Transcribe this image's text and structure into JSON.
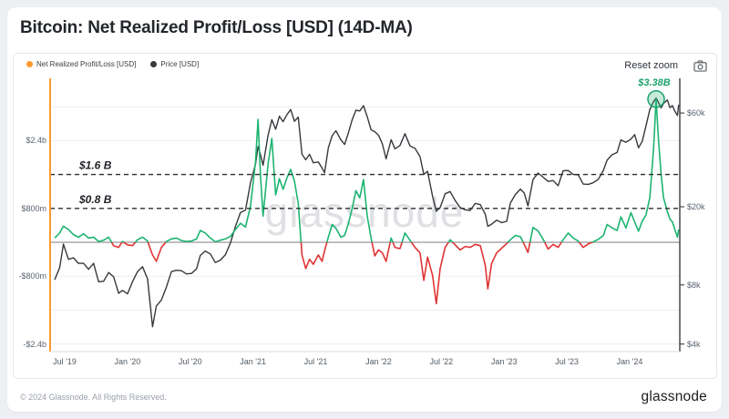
{
  "page": {
    "title": "Bitcoin: Net Realized Profit/Loss [USD] (14D-MA)"
  },
  "toolbar": {
    "reset_zoom": "Reset zoom",
    "camera_icon": "camera-icon"
  },
  "legend": {
    "items": [
      {
        "label": "Net Realized Profit/Loss [USD]",
        "color": "#ff9a2e"
      },
      {
        "label": "Price [USD]",
        "color": "#35393e"
      }
    ]
  },
  "watermark": "glassnode",
  "footer": {
    "copyright": "© 2024 Glassnode. All Rights Reserved.",
    "brand": "glassnode"
  },
  "chart_data": {
    "type": "line",
    "title": "Bitcoin: Net Realized Profit/Loss [USD] (14D-MA)",
    "series": [
      {
        "name": "Net Realized Profit/Loss [USD]",
        "axis": "left",
        "unit": "billions USD",
        "style": "green above zero, red below zero"
      },
      {
        "name": "Price [USD]",
        "axis": "right",
        "unit": "USD",
        "style": "dark line, log scale"
      }
    ],
    "x_unit": "decimal year",
    "x": [
      2019.42,
      2019.46,
      2019.49,
      2019.53,
      2019.57,
      2019.61,
      2019.65,
      2019.69,
      2019.73,
      2019.77,
      2019.81,
      2019.85,
      2019.89,
      2019.93,
      2019.96,
      2020.0,
      2020.04,
      2020.08,
      2020.12,
      2020.16,
      2020.2,
      2020.23,
      2020.27,
      2020.31,
      2020.35,
      2020.39,
      2020.43,
      2020.47,
      2020.51,
      2020.55,
      2020.58,
      2020.62,
      2020.66,
      2020.7,
      2020.74,
      2020.78,
      2020.82,
      2020.86,
      2020.9,
      2020.94,
      2020.98,
      2021.02,
      2021.04,
      2021.06,
      2021.08,
      2021.12,
      2021.15,
      2021.18,
      2021.21,
      2021.24,
      2021.27,
      2021.3,
      2021.33,
      2021.36,
      2021.39,
      2021.42,
      2021.45,
      2021.48,
      2021.52,
      2021.55,
      2021.57,
      2021.6,
      2021.63,
      2021.66,
      2021.7,
      2021.73,
      2021.76,
      2021.79,
      2021.82,
      2021.85,
      2021.88,
      2021.91,
      2021.94,
      2021.97,
      2022.0,
      2022.03,
      2022.06,
      2022.1,
      2022.13,
      2022.17,
      2022.21,
      2022.25,
      2022.29,
      2022.33,
      2022.36,
      2022.39,
      2022.43,
      2022.46,
      2022.49,
      2022.53,
      2022.57,
      2022.61,
      2022.65,
      2022.69,
      2022.73,
      2022.77,
      2022.81,
      2022.85,
      2022.87,
      2022.9,
      2022.94,
      2022.98,
      2023.02,
      2023.05,
      2023.09,
      2023.13,
      2023.16,
      2023.19,
      2023.23,
      2023.27,
      2023.31,
      2023.35,
      2023.39,
      2023.43,
      2023.47,
      2023.51,
      2023.55,
      2023.59,
      2023.63,
      2023.67,
      2023.71,
      2023.75,
      2023.79,
      2023.82,
      2023.86,
      2023.9,
      2023.93,
      2023.97,
      2024.01,
      2024.04,
      2024.07,
      2024.1,
      2024.13,
      2024.16,
      2024.19,
      2024.21,
      2024.23,
      2024.25,
      2024.27,
      2024.3,
      2024.32,
      2024.34,
      2024.36,
      2024.38,
      2024.39
    ],
    "price_usd": [
      8500,
      9800,
      12900,
      10800,
      11000,
      10300,
      10300,
      9600,
      10300,
      8300,
      8350,
      9250,
      8800,
      7250,
      7500,
      7200,
      8300,
      9350,
      9900,
      8600,
      4900,
      6250,
      6700,
      7800,
      9350,
      9500,
      9450,
      9100,
      9150,
      9650,
      11300,
      11900,
      11500,
      10400,
      10700,
      11400,
      13100,
      15900,
      18700,
      19200,
      26500,
      33000,
      40500,
      36800,
      32500,
      46300,
      55500,
      49600,
      57800,
      54200,
      58900,
      62500,
      54500,
      57200,
      37000,
      34700,
      37000,
      33500,
      33800,
      31500,
      29800,
      39900,
      46000,
      48800,
      43800,
      41500,
      47700,
      55500,
      62000,
      61500,
      65400,
      57500,
      49300,
      48200,
      46300,
      41800,
      35100,
      43900,
      39500,
      41000,
      47100,
      40800,
      39700,
      36000,
      29200,
      30300,
      22600,
      18970,
      19800,
      23300,
      23900,
      21500,
      19800,
      19300,
      19150,
      20800,
      20500,
      18300,
      15900,
      16300,
      17100,
      16600,
      16850,
      20900,
      23100,
      24600,
      23500,
      20200,
      27500,
      29700,
      28300,
      26900,
      27200,
      25600,
      30500,
      30600,
      29200,
      29100,
      26100,
      26000,
      26500,
      27600,
      30600,
      34500,
      36800,
      37800,
      43800,
      42600,
      44200,
      46600,
      39900,
      43100,
      51600,
      62500,
      68500,
      71500,
      67800,
      63800,
      67200,
      69900,
      63900,
      65500,
      61300,
      58300,
      66200
    ],
    "nrpl_billions": [
      0.1,
      0.22,
      0.38,
      0.3,
      0.18,
      0.12,
      0.2,
      0.1,
      0.12,
      0.02,
      0.05,
      0.12,
      -0.08,
      -0.12,
      0.02,
      -0.06,
      -0.08,
      0.06,
      0.12,
      0.03,
      -0.3,
      -0.45,
      -0.12,
      0.02,
      0.08,
      0.1,
      0.04,
      0.02,
      0.03,
      0.08,
      0.28,
      0.22,
      0.1,
      0.01,
      0.05,
      0.08,
      0.14,
      0.3,
      0.45,
      0.36,
      0.85,
      1.9,
      2.9,
      1.55,
      0.62,
      1.85,
      2.45,
      1.12,
      1.5,
      1.25,
      1.52,
      1.72,
      1.45,
      0.92,
      -0.3,
      -0.62,
      -0.4,
      -0.52,
      -0.3,
      -0.45,
      -0.2,
      0.12,
      0.42,
      0.33,
      0.12,
      0.16,
      0.45,
      0.8,
      1.22,
      1.05,
      1.48,
      0.62,
      0.1,
      -0.32,
      -0.18,
      -0.25,
      -0.45,
      0.1,
      -0.12,
      -0.15,
      0.22,
      0.05,
      -0.12,
      -0.25,
      -0.9,
      -0.35,
      -0.78,
      -1.45,
      -0.62,
      -0.12,
      0.06,
      -0.06,
      -0.18,
      -0.1,
      -0.12,
      -0.05,
      -0.08,
      -0.55,
      -1.1,
      -0.5,
      -0.25,
      -0.14,
      -0.03,
      0.06,
      0.16,
      0.13,
      -0.05,
      -0.24,
      0.35,
      0.27,
      0.07,
      -0.16,
      -0.05,
      -0.12,
      0.06,
      0.22,
      0.1,
      0.03,
      -0.12,
      -0.04,
      0.01,
      0.07,
      0.16,
      0.42,
      0.34,
      0.28,
      0.6,
      0.34,
      0.7,
      0.48,
      0.26,
      0.5,
      0.64,
      1.05,
      2.2,
      3.38,
      2.4,
      1.6,
      1.05,
      0.72,
      0.55,
      0.48,
      0.3,
      0.12,
      0.3
    ],
    "x_axis": {
      "min": 2019.384,
      "max": 2024.399,
      "ticks": [
        {
          "v": 2019.5,
          "label": "Jul '19"
        },
        {
          "v": 2020.0,
          "label": "Jan '20"
        },
        {
          "v": 2020.5,
          "label": "Jul '20"
        },
        {
          "v": 2021.0,
          "label": "Jan '21"
        },
        {
          "v": 2021.5,
          "label": "Jul '21"
        },
        {
          "v": 2022.0,
          "label": "Jan '22"
        },
        {
          "v": 2022.5,
          "label": "Jul '22"
        },
        {
          "v": 2023.0,
          "label": "Jan '23"
        },
        {
          "v": 2023.5,
          "label": "Jul '23"
        },
        {
          "v": 2024.0,
          "label": "Jan '24"
        }
      ]
    },
    "y_axis_left": {
      "unit": "USD billions",
      "min": -2.581,
      "max": 3.806,
      "ticks": [
        {
          "v": 2.4,
          "label": "$2.4b"
        },
        {
          "v": 0.8,
          "label": "$800m"
        },
        {
          "v": -0.8,
          "label": "-$800m"
        },
        {
          "v": -2.4,
          "label": "-$2.4b"
        }
      ],
      "grid": [
        3.2,
        2.4,
        1.6,
        0.8,
        -0.8,
        -1.6,
        -2.4
      ]
    },
    "y_axis_right": {
      "unit": "USD",
      "scale": "log",
      "min": 3660,
      "max": 87300,
      "ticks": [
        {
          "v": 60000,
          "label": "$60k"
        },
        {
          "v": 20000,
          "label": "$20k"
        },
        {
          "v": 8000,
          "label": "$8k"
        },
        {
          "v": 4000,
          "label": "$4k"
        }
      ]
    },
    "reference_lines": [
      {
        "v": 1.6,
        "label": "$1.6 B"
      },
      {
        "v": 0.8,
        "label": "$0.8 B"
      }
    ],
    "annotation": {
      "t": 2024.21,
      "v": 3.38,
      "label": "$3.38B"
    },
    "colors": {
      "profit": "#1db471",
      "loss": "#e03434",
      "price": "#36393d",
      "left_axis": "#ff9a2e",
      "right_axis": "#46494e",
      "bottom_axis": "#d9dbe0",
      "grid": "#ededf0",
      "zero_line": "#97979c",
      "dashed": "#2e2e33",
      "annotation": "#1ea26e",
      "annotation_fill": "rgba(30,178,115,0.25)"
    },
    "legend_position": "top-left",
    "grid_vertical": false
  }
}
